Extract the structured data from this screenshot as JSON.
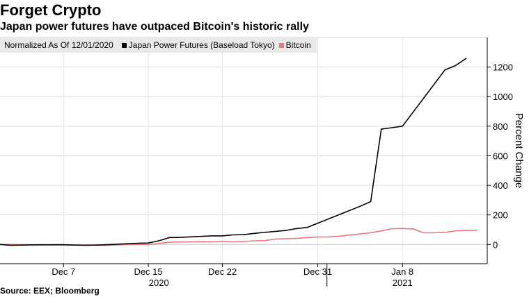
{
  "chart_data": {
    "type": "line",
    "title": "Forget Crypto",
    "subtitle": "Japan power futures have outpaced Bitcoin's historic rally",
    "legend_note": "Normalized As Of 12/01/2020",
    "ylabel": "Percent Change",
    "xlabel": "",
    "ylim": [
      -130,
      1400
    ],
    "yticks": [
      0,
      200,
      400,
      600,
      800,
      1000,
      1200
    ],
    "xlim": [
      "2020-12-01",
      "2021-01-16"
    ],
    "x_ticks": [
      {
        "label": "Dec 7",
        "date": "2020-12-07"
      },
      {
        "label": "Dec 15",
        "date": "2020-12-15"
      },
      {
        "label": "Dec 22",
        "date": "2020-12-22"
      },
      {
        "label": "Dec 31",
        "date": "2020-12-31"
      },
      {
        "label": "Jan 8",
        "date": "2021-01-08"
      }
    ],
    "year_labels": [
      {
        "label": "2020",
        "date": "2020-12-16"
      },
      {
        "label": "2021",
        "date": "2021-01-08"
      }
    ],
    "year_divider_date": "2021-01-01",
    "series": [
      {
        "name": "Japan Power Futures (Baseload Tokyo)",
        "color": "#000000",
        "points": [
          {
            "date": "2020-12-01",
            "value": 0
          },
          {
            "date": "2020-12-02",
            "value": -5
          },
          {
            "date": "2020-12-03",
            "value": -4
          },
          {
            "date": "2020-12-04",
            "value": -3
          },
          {
            "date": "2020-12-07",
            "value": -2
          },
          {
            "date": "2020-12-08",
            "value": -4
          },
          {
            "date": "2020-12-09",
            "value": -5
          },
          {
            "date": "2020-12-10",
            "value": -4
          },
          {
            "date": "2020-12-11",
            "value": -2
          },
          {
            "date": "2020-12-14",
            "value": 8
          },
          {
            "date": "2020-12-15",
            "value": 10
          },
          {
            "date": "2020-12-16",
            "value": 25
          },
          {
            "date": "2020-12-17",
            "value": 47
          },
          {
            "date": "2020-12-18",
            "value": 48
          },
          {
            "date": "2020-12-21",
            "value": 58
          },
          {
            "date": "2020-12-22",
            "value": 58
          },
          {
            "date": "2020-12-23",
            "value": 65
          },
          {
            "date": "2020-12-24",
            "value": 66
          },
          {
            "date": "2020-12-25",
            "value": 75
          },
          {
            "date": "2020-12-28",
            "value": 95
          },
          {
            "date": "2020-12-29",
            "value": 108
          },
          {
            "date": "2020-12-30",
            "value": 115
          },
          {
            "date": "2021-01-04",
            "value": 258
          },
          {
            "date": "2021-01-05",
            "value": 290
          },
          {
            "date": "2021-01-06",
            "value": 780
          },
          {
            "date": "2021-01-07",
            "value": 790
          },
          {
            "date": "2021-01-08",
            "value": 800
          },
          {
            "date": "2021-01-12",
            "value": 1180
          },
          {
            "date": "2021-01-13",
            "value": 1210
          },
          {
            "date": "2021-01-14",
            "value": 1258
          }
        ]
      },
      {
        "name": "Bitcoin",
        "color": "#e8767b",
        "points": [
          {
            "date": "2020-12-01",
            "value": 0
          },
          {
            "date": "2020-12-02",
            "value": 0
          },
          {
            "date": "2020-12-03",
            "value": -2
          },
          {
            "date": "2020-12-04",
            "value": -2
          },
          {
            "date": "2020-12-05",
            "value": -1
          },
          {
            "date": "2020-12-06",
            "value": -1
          },
          {
            "date": "2020-12-07",
            "value": -2
          },
          {
            "date": "2020-12-08",
            "value": -4
          },
          {
            "date": "2020-12-09",
            "value": -4
          },
          {
            "date": "2020-12-10",
            "value": -5
          },
          {
            "date": "2020-12-11",
            "value": -6
          },
          {
            "date": "2020-12-12",
            "value": -3
          },
          {
            "date": "2020-12-13",
            "value": -1
          },
          {
            "date": "2020-12-14",
            "value": 0
          },
          {
            "date": "2020-12-15",
            "value": 0
          },
          {
            "date": "2020-12-16",
            "value": 7
          },
          {
            "date": "2020-12-17",
            "value": 15
          },
          {
            "date": "2020-12-18",
            "value": 17
          },
          {
            "date": "2020-12-19",
            "value": 18
          },
          {
            "date": "2020-12-20",
            "value": 19
          },
          {
            "date": "2020-12-21",
            "value": 18
          },
          {
            "date": "2020-12-22",
            "value": 20
          },
          {
            "date": "2020-12-23",
            "value": 18
          },
          {
            "date": "2020-12-24",
            "value": 20
          },
          {
            "date": "2020-12-25",
            "value": 25
          },
          {
            "date": "2020-12-26",
            "value": 26
          },
          {
            "date": "2020-12-27",
            "value": 37
          },
          {
            "date": "2020-12-28",
            "value": 39
          },
          {
            "date": "2020-12-29",
            "value": 41
          },
          {
            "date": "2020-12-30",
            "value": 47
          },
          {
            "date": "2020-12-31",
            "value": 50
          },
          {
            "date": "2021-01-01",
            "value": 51
          },
          {
            "date": "2021-01-02",
            "value": 56
          },
          {
            "date": "2021-01-03",
            "value": 64
          },
          {
            "date": "2021-01-04",
            "value": 72
          },
          {
            "date": "2021-01-05",
            "value": 79
          },
          {
            "date": "2021-01-06",
            "value": 92
          },
          {
            "date": "2021-01-07",
            "value": 107
          },
          {
            "date": "2021-01-08",
            "value": 108
          },
          {
            "date": "2021-01-09",
            "value": 105
          },
          {
            "date": "2021-01-10",
            "value": 79
          },
          {
            "date": "2021-01-11",
            "value": 79
          },
          {
            "date": "2021-01-12",
            "value": 81
          },
          {
            "date": "2021-01-13",
            "value": 92
          },
          {
            "date": "2021-01-14",
            "value": 95
          },
          {
            "date": "2021-01-15",
            "value": 96
          }
        ]
      }
    ]
  },
  "source": "Source: EEX; Bloomberg"
}
